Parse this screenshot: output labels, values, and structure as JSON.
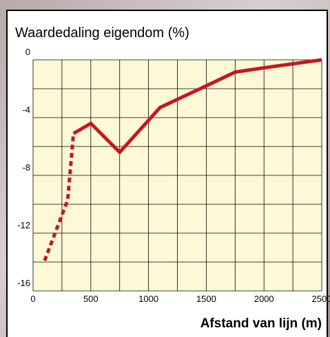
{
  "chart_data": {
    "type": "line",
    "title": "Waardedaling eigendom (%)",
    "x_label": "Afstand van lijn (m)",
    "xlim": [
      0,
      2500
    ],
    "xticks": [
      0,
      500,
      1000,
      1500,
      2000,
      2500
    ],
    "ylim": [
      -16,
      0
    ],
    "yticks": [
      0,
      -4,
      -8,
      -12,
      -16
    ],
    "grid": true,
    "series": [
      {
        "color": "#c8161d",
        "style": "dashed",
        "x": [
          100,
          200,
          300,
          350
        ],
        "values": [
          -13.9,
          -11.8,
          -9.7,
          -5.1
        ]
      },
      {
        "color": "#c8161d",
        "style": "solid",
        "x": [
          350,
          500,
          750,
          1100,
          1500,
          1750,
          2000,
          2500
        ],
        "values": [
          -5.1,
          -4.4,
          -6.4,
          -3.3,
          -1.8,
          -0.85,
          -0.55,
          0
        ]
      }
    ]
  }
}
